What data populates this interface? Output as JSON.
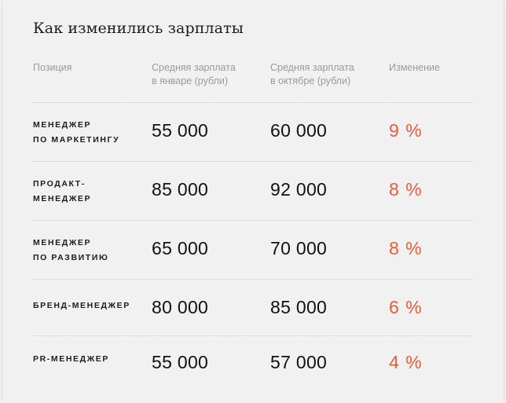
{
  "title": "Как изменились зарплаты",
  "accent_color": "#ea5b3a",
  "columns": {
    "position": [
      "Позиция"
    ],
    "jan": [
      "Средняя зарплата",
      "в январе (рубли)"
    ],
    "oct": [
      "Средняя зарплата",
      "в октябре (рубли)"
    ],
    "change": [
      "Изменение"
    ]
  },
  "rows": [
    {
      "position": [
        "МЕНЕДЖЕР",
        "ПО МАРКЕТИНГУ"
      ],
      "jan": "55 000",
      "oct": "60 000",
      "change": "9 %"
    },
    {
      "position": [
        "ПРОДАКТ-",
        "МЕНЕДЖЕР"
      ],
      "jan": "85 000",
      "oct": "92 000",
      "change": "8 %"
    },
    {
      "position": [
        "МЕНЕДЖЕР",
        "ПО РАЗВИТИЮ"
      ],
      "jan": "65 000",
      "oct": "70 000",
      "change": "8 %"
    },
    {
      "position": [
        "БРЕНД-МЕНЕДЖЕР"
      ],
      "jan": "80 000",
      "oct": "85 000",
      "change": "6 %"
    },
    {
      "position": [
        "PR-МЕНЕДЖЕР"
      ],
      "jan": "55 000",
      "oct": "57 000",
      "change": "4 %"
    }
  ]
}
